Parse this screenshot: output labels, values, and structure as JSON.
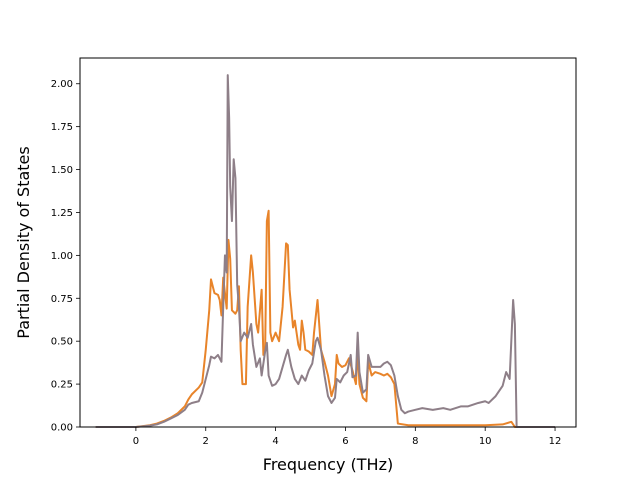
{
  "chart_data": {
    "type": "line",
    "title": "",
    "xlabel": "Frequency (THz)",
    "ylabel": "Partial Density of States",
    "xlim": [
      -1.6,
      12.6
    ],
    "ylim": [
      0.0,
      2.15
    ],
    "xticks": [
      0,
      2,
      4,
      6,
      8,
      10,
      12
    ],
    "yticks": [
      0.0,
      0.25,
      0.5,
      0.75,
      1.0,
      1.25,
      1.5,
      1.75,
      2.0
    ],
    "xtick_labels": [
      "0",
      "2",
      "4",
      "6",
      "8",
      "10",
      "12"
    ],
    "ytick_labels": [
      "0.00",
      "0.25",
      "0.50",
      "0.75",
      "1.00",
      "1.25",
      "1.50",
      "1.75",
      "2.00"
    ],
    "grid": false,
    "legend": "none",
    "series": [
      {
        "color": "#e8842a",
        "points": [
          [
            -1.15,
            0.0
          ],
          [
            0.0,
            0.0
          ],
          [
            0.2,
            0.005
          ],
          [
            0.4,
            0.01
          ],
          [
            0.6,
            0.02
          ],
          [
            0.8,
            0.035
          ],
          [
            1.0,
            0.055
          ],
          [
            1.2,
            0.08
          ],
          [
            1.4,
            0.12
          ],
          [
            1.5,
            0.16
          ],
          [
            1.6,
            0.19
          ],
          [
            1.8,
            0.23
          ],
          [
            1.9,
            0.26
          ],
          [
            2.0,
            0.45
          ],
          [
            2.1,
            0.68
          ],
          [
            2.15,
            0.86
          ],
          [
            2.2,
            0.82
          ],
          [
            2.25,
            0.78
          ],
          [
            2.35,
            0.77
          ],
          [
            2.4,
            0.74
          ],
          [
            2.45,
            0.65
          ],
          [
            2.5,
            0.87
          ],
          [
            2.55,
            0.78
          ],
          [
            2.6,
            0.69
          ],
          [
            2.65,
            1.09
          ],
          [
            2.7,
            0.98
          ],
          [
            2.75,
            0.68
          ],
          [
            2.85,
            0.66
          ],
          [
            2.9,
            0.68
          ],
          [
            2.95,
            0.82
          ],
          [
            3.0,
            0.45
          ],
          [
            3.05,
            0.25
          ],
          [
            3.15,
            0.25
          ],
          [
            3.2,
            0.7
          ],
          [
            3.3,
            1.0
          ],
          [
            3.35,
            0.9
          ],
          [
            3.45,
            0.6
          ],
          [
            3.5,
            0.55
          ],
          [
            3.6,
            0.8
          ],
          [
            3.65,
            0.42
          ],
          [
            3.7,
            0.45
          ],
          [
            3.75,
            1.2
          ],
          [
            3.8,
            1.26
          ],
          [
            3.85,
            0.55
          ],
          [
            3.9,
            0.5
          ],
          [
            4.0,
            0.55
          ],
          [
            4.1,
            0.5
          ],
          [
            4.2,
            0.7
          ],
          [
            4.3,
            1.07
          ],
          [
            4.35,
            1.06
          ],
          [
            4.4,
            0.8
          ],
          [
            4.5,
            0.58
          ],
          [
            4.55,
            0.62
          ],
          [
            4.6,
            0.55
          ],
          [
            4.65,
            0.48
          ],
          [
            4.7,
            0.45
          ],
          [
            4.75,
            0.62
          ],
          [
            4.8,
            0.55
          ],
          [
            4.85,
            0.45
          ],
          [
            4.95,
            0.44
          ],
          [
            5.05,
            0.42
          ],
          [
            5.1,
            0.55
          ],
          [
            5.2,
            0.74
          ],
          [
            5.3,
            0.45
          ],
          [
            5.4,
            0.38
          ],
          [
            5.5,
            0.3
          ],
          [
            5.6,
            0.18
          ],
          [
            5.7,
            0.25
          ],
          [
            5.75,
            0.42
          ],
          [
            5.8,
            0.37
          ],
          [
            5.9,
            0.35
          ],
          [
            6.0,
            0.36
          ],
          [
            6.1,
            0.4
          ],
          [
            6.2,
            0.33
          ],
          [
            6.3,
            0.25
          ],
          [
            6.35,
            0.45
          ],
          [
            6.4,
            0.25
          ],
          [
            6.5,
            0.17
          ],
          [
            6.6,
            0.15
          ],
          [
            6.65,
            0.38
          ],
          [
            6.75,
            0.3
          ],
          [
            6.85,
            0.32
          ],
          [
            7.0,
            0.31
          ],
          [
            7.1,
            0.3
          ],
          [
            7.2,
            0.31
          ],
          [
            7.3,
            0.29
          ],
          [
            7.4,
            0.25
          ],
          [
            7.5,
            0.02
          ],
          [
            7.8,
            0.01
          ],
          [
            8.5,
            0.01
          ],
          [
            9.0,
            0.01
          ],
          [
            9.5,
            0.01
          ],
          [
            10.0,
            0.01
          ],
          [
            10.5,
            0.015
          ],
          [
            10.75,
            0.03
          ],
          [
            10.85,
            0.0
          ],
          [
            12.0,
            0.0
          ]
        ]
      },
      {
        "color": "#8e7f88",
        "points": [
          [
            -1.15,
            0.0
          ],
          [
            0.0,
            0.0
          ],
          [
            0.2,
            0.004
          ],
          [
            0.4,
            0.008
          ],
          [
            0.6,
            0.015
          ],
          [
            0.8,
            0.03
          ],
          [
            1.0,
            0.05
          ],
          [
            1.2,
            0.07
          ],
          [
            1.4,
            0.1
          ],
          [
            1.5,
            0.13
          ],
          [
            1.6,
            0.14
          ],
          [
            1.8,
            0.15
          ],
          [
            1.9,
            0.2
          ],
          [
            2.0,
            0.28
          ],
          [
            2.1,
            0.36
          ],
          [
            2.15,
            0.41
          ],
          [
            2.25,
            0.4
          ],
          [
            2.35,
            0.42
          ],
          [
            2.45,
            0.38
          ],
          [
            2.5,
            0.7
          ],
          [
            2.55,
            1.0
          ],
          [
            2.6,
            0.9
          ],
          [
            2.63,
            2.05
          ],
          [
            2.67,
            1.8
          ],
          [
            2.7,
            1.4
          ],
          [
            2.75,
            1.2
          ],
          [
            2.8,
            1.56
          ],
          [
            2.85,
            1.45
          ],
          [
            2.9,
            0.83
          ],
          [
            2.95,
            0.7
          ],
          [
            3.0,
            0.5
          ],
          [
            3.1,
            0.55
          ],
          [
            3.2,
            0.52
          ],
          [
            3.3,
            0.6
          ],
          [
            3.35,
            0.48
          ],
          [
            3.45,
            0.35
          ],
          [
            3.55,
            0.4
          ],
          [
            3.6,
            0.3
          ],
          [
            3.7,
            0.44
          ],
          [
            3.75,
            0.49
          ],
          [
            3.8,
            0.3
          ],
          [
            3.9,
            0.24
          ],
          [
            4.0,
            0.25
          ],
          [
            4.1,
            0.28
          ],
          [
            4.2,
            0.35
          ],
          [
            4.3,
            0.42
          ],
          [
            4.35,
            0.45
          ],
          [
            4.45,
            0.35
          ],
          [
            4.55,
            0.28
          ],
          [
            4.65,
            0.25
          ],
          [
            4.75,
            0.3
          ],
          [
            4.85,
            0.27
          ],
          [
            4.95,
            0.33
          ],
          [
            5.05,
            0.37
          ],
          [
            5.15,
            0.5
          ],
          [
            5.2,
            0.52
          ],
          [
            5.3,
            0.45
          ],
          [
            5.4,
            0.3
          ],
          [
            5.5,
            0.18
          ],
          [
            5.6,
            0.14
          ],
          [
            5.7,
            0.17
          ],
          [
            5.75,
            0.28
          ],
          [
            5.85,
            0.26
          ],
          [
            5.95,
            0.3
          ],
          [
            6.05,
            0.32
          ],
          [
            6.15,
            0.42
          ],
          [
            6.2,
            0.29
          ],
          [
            6.3,
            0.3
          ],
          [
            6.35,
            0.55
          ],
          [
            6.4,
            0.32
          ],
          [
            6.5,
            0.2
          ],
          [
            6.6,
            0.22
          ],
          [
            6.65,
            0.42
          ],
          [
            6.75,
            0.35
          ],
          [
            6.85,
            0.35
          ],
          [
            7.0,
            0.35
          ],
          [
            7.1,
            0.37
          ],
          [
            7.2,
            0.38
          ],
          [
            7.3,
            0.36
          ],
          [
            7.4,
            0.3
          ],
          [
            7.5,
            0.18
          ],
          [
            7.6,
            0.1
          ],
          [
            7.7,
            0.08
          ],
          [
            7.8,
            0.09
          ],
          [
            8.0,
            0.1
          ],
          [
            8.2,
            0.11
          ],
          [
            8.5,
            0.1
          ],
          [
            8.8,
            0.11
          ],
          [
            9.0,
            0.1
          ],
          [
            9.3,
            0.12
          ],
          [
            9.5,
            0.12
          ],
          [
            9.8,
            0.14
          ],
          [
            10.0,
            0.15
          ],
          [
            10.1,
            0.14
          ],
          [
            10.3,
            0.18
          ],
          [
            10.5,
            0.24
          ],
          [
            10.6,
            0.32
          ],
          [
            10.7,
            0.28
          ],
          [
            10.8,
            0.74
          ],
          [
            10.85,
            0.6
          ],
          [
            10.9,
            0.0
          ],
          [
            12.0,
            0.0
          ]
        ]
      }
    ]
  }
}
